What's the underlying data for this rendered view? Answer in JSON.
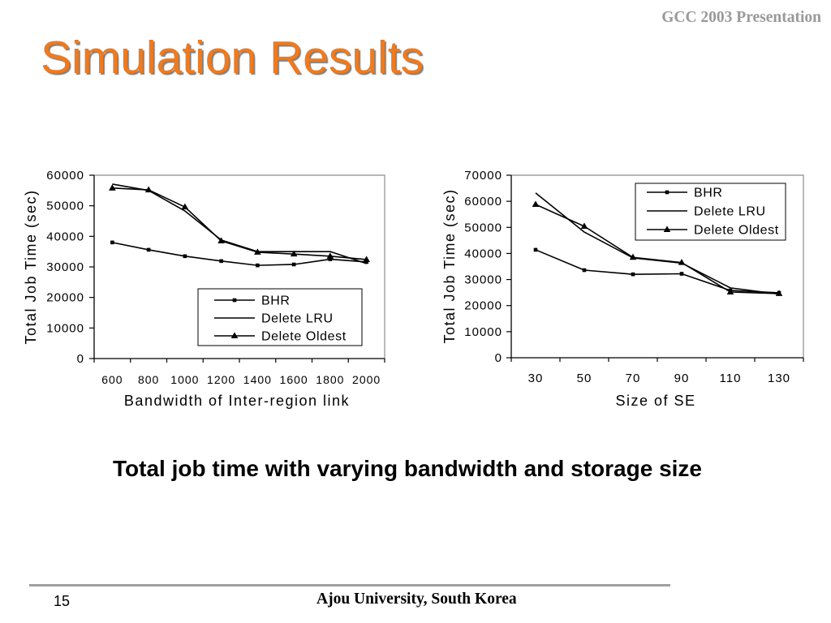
{
  "header": {
    "presentation_label": "GCC 2003 Presentation"
  },
  "slide": {
    "title": "Simulation Results",
    "caption": "Total job time with varying bandwidth and storage size"
  },
  "footer": {
    "page_number": "15",
    "organization": "Ajou University, South Korea"
  },
  "colors": {
    "title": "#F07A1E",
    "title_shadow": "#808080",
    "header_text": "#999999",
    "axis": "#000000",
    "plot_frame": "#8C8C8C",
    "series": "#000000",
    "footer_rule": "#A0A0A0"
  },
  "chart_data": [
    {
      "type": "line",
      "xlabel": "Bandwidth of Inter-region link",
      "ylabel": "Total Job Time (sec)",
      "categories": [
        "600",
        "800",
        "1000",
        "1200",
        "1400",
        "1600",
        "1800",
        "2000"
      ],
      "ylim": [
        0,
        60000
      ],
      "yticks": [
        0,
        10000,
        20000,
        30000,
        40000,
        50000,
        60000
      ],
      "grid": false,
      "legend_position": "lower-right",
      "series": [
        {
          "name": "BHR",
          "marker": "square",
          "values": [
            38000,
            35600,
            33500,
            31900,
            30500,
            30800,
            32500,
            31600
          ]
        },
        {
          "name": "Delete LRU",
          "marker": "none",
          "values": [
            57100,
            55000,
            48300,
            38800,
            35000,
            35000,
            35000,
            31100
          ]
        },
        {
          "name": "Delete Oldest",
          "marker": "triangle",
          "values": [
            55800,
            55200,
            49600,
            38500,
            34800,
            34200,
            33500,
            32400
          ]
        }
      ]
    },
    {
      "type": "line",
      "xlabel": "Size of SE",
      "ylabel": "Total Job Time (sec)",
      "categories": [
        "30",
        "50",
        "70",
        "90",
        "110",
        "130"
      ],
      "ylim": [
        0,
        70000
      ],
      "yticks": [
        0,
        10000,
        20000,
        30000,
        40000,
        50000,
        60000,
        70000
      ],
      "grid": false,
      "legend_position": "upper-right",
      "series": [
        {
          "name": "BHR",
          "marker": "square",
          "values": [
            41400,
            33600,
            32000,
            32200,
            25800,
            24900
          ]
        },
        {
          "name": "Delete LRU",
          "marker": "none",
          "values": [
            63200,
            48200,
            38300,
            36300,
            26800,
            24400
          ]
        },
        {
          "name": "Delete Oldest",
          "marker": "triangle",
          "values": [
            58800,
            50400,
            38500,
            36500,
            25200,
            24600
          ]
        }
      ]
    }
  ]
}
